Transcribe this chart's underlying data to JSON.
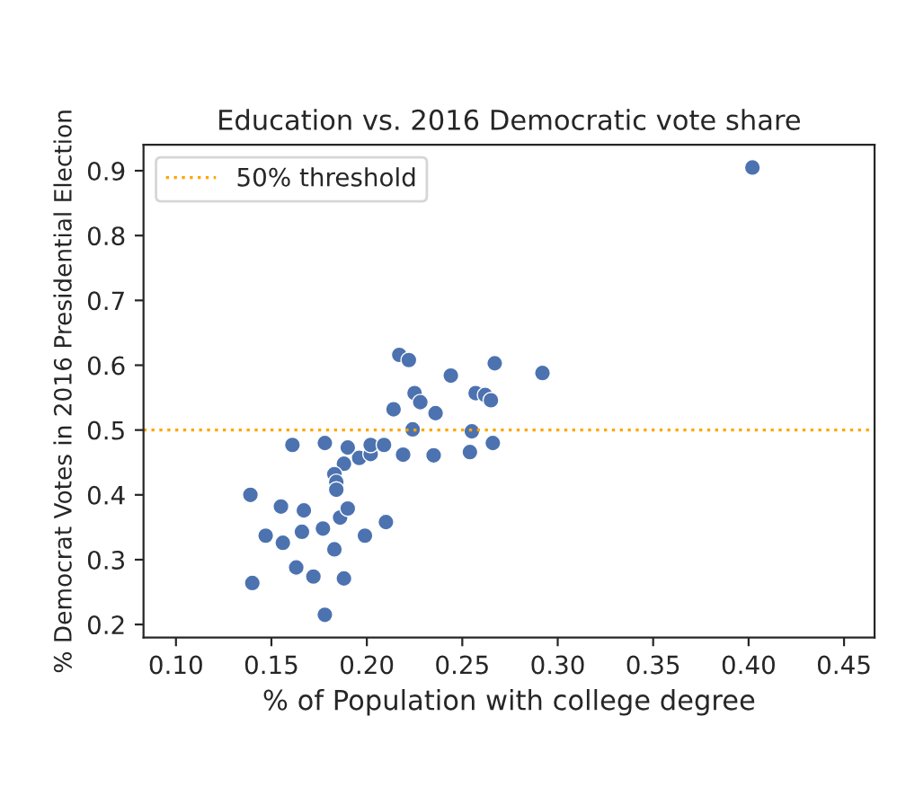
{
  "chart_data": {
    "type": "scatter",
    "title": "Education vs. 2016 Democratic vote share",
    "xlabel": "% of Population with college degree",
    "ylabel": "% Democrat Votes in 2016 Presidential Election",
    "x": [
      0.139,
      0.14,
      0.147,
      0.155,
      0.156,
      0.161,
      0.163,
      0.167,
      0.166,
      0.172,
      0.177,
      0.178,
      0.178,
      0.183,
      0.19,
      0.188,
      0.183,
      0.184,
      0.184,
      0.186,
      0.19,
      0.188,
      0.199,
      0.196,
      0.202,
      0.202,
      0.209,
      0.21,
      0.214,
      0.217,
      0.222,
      0.219,
      0.225,
      0.228,
      0.224,
      0.236,
      0.235,
      0.244,
      0.254,
      0.255,
      0.257,
      0.262,
      0.265,
      0.267,
      0.266,
      0.292,
      0.402
    ],
    "series": [
      {
        "color": "#4c72b0",
        "values": [
          0.4,
          0.264,
          0.337,
          0.382,
          0.326,
          0.477,
          0.288,
          0.376,
          0.343,
          0.274,
          0.348,
          0.215,
          0.48,
          0.316,
          0.473,
          0.448,
          0.432,
          0.42,
          0.408,
          0.365,
          0.379,
          0.271,
          0.337,
          0.457,
          0.463,
          0.477,
          0.477,
          0.358,
          0.532,
          0.616,
          0.608,
          0.462,
          0.557,
          0.543,
          0.501,
          0.526,
          0.461,
          0.584,
          0.466,
          0.498,
          0.557,
          0.554,
          0.546,
          0.603,
          0.48,
          0.588,
          0.905
        ]
      }
    ],
    "marker": "circle",
    "ref_lines": [
      {
        "axis": "y",
        "value": 0.5,
        "label": "50% threshold",
        "color": "#ffa500",
        "line_style": "dotted"
      }
    ],
    "legend": "top left",
    "xlim": [
      0.083,
      0.466
    ],
    "ylim": [
      0.18,
      0.94
    ],
    "xticks": [
      {
        "value": 0.1,
        "label": "0.10"
      },
      {
        "value": 0.15,
        "label": "0.15"
      },
      {
        "value": 0.2,
        "label": "0.20"
      },
      {
        "value": 0.25,
        "label": "0.25"
      },
      {
        "value": 0.3,
        "label": "0.30"
      },
      {
        "value": 0.35,
        "label": "0.35"
      },
      {
        "value": 0.4,
        "label": "0.40"
      },
      {
        "value": 0.45,
        "label": "0.45"
      }
    ],
    "yticks": [
      0.2,
      0.3,
      0.4,
      0.5,
      0.6,
      0.7,
      0.8,
      0.9
    ],
    "grid": false
  }
}
